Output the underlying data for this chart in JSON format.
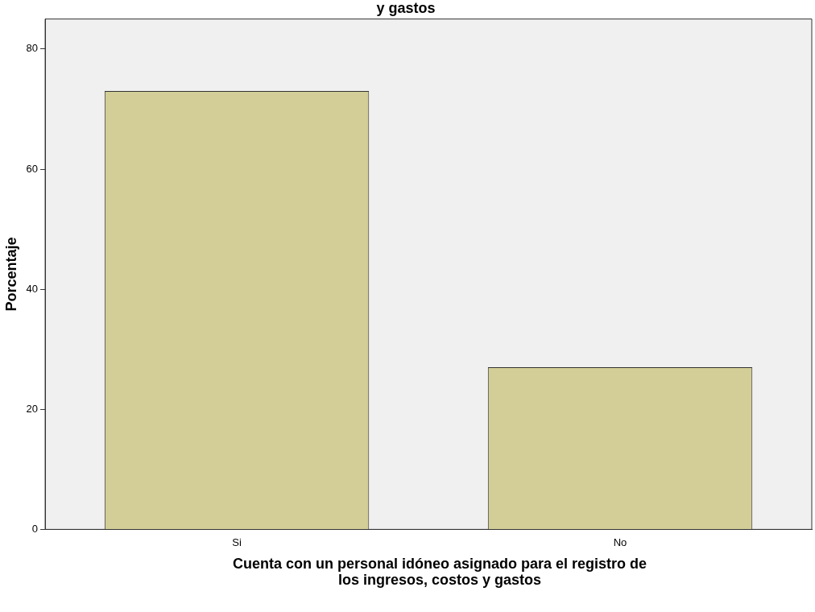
{
  "chart_data": {
    "type": "bar",
    "title": "y gastos",
    "xlabel": "Cuenta con un personal idóneo asignado para el registro de los ingresos, costos y gastos",
    "ylabel": "Porcentaje",
    "categories": [
      "Si",
      "No"
    ],
    "values": [
      73,
      27
    ],
    "color": "#d3ce97",
    "ylim": [
      0,
      85
    ],
    "yticks": [
      0,
      20,
      40,
      60,
      80
    ],
    "grid": false,
    "legend": false
  }
}
